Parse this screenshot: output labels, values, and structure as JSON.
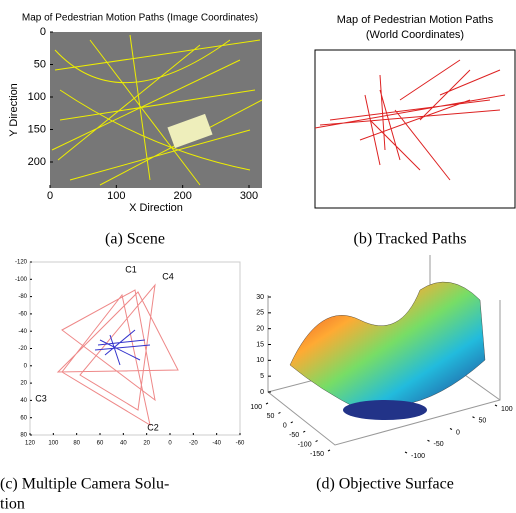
{
  "figures": [
    {
      "caption": "(a) Scene",
      "title": "Map of Pedestrian Motion Paths (Image Coordinates)",
      "xlabel": "X Direction",
      "ylabel": "Y Direction",
      "xticks": [
        0,
        100,
        200,
        300
      ],
      "yticks": [
        0,
        50,
        100,
        150,
        200
      ]
    },
    {
      "caption": "(b) Tracked Paths",
      "title": [
        "Map of Pedestrian Motion Paths",
        "(World Coordinates)"
      ]
    },
    {
      "caption": [
        "(c) Multiple Camera Solu-",
        "tion"
      ],
      "cameras": [
        "C1",
        "C2",
        "C3",
        "C4"
      ],
      "xticks": [
        120,
        100,
        80,
        60,
        40,
        20,
        0,
        -20,
        -40,
        -60
      ],
      "yticks": [
        -120,
        -100,
        -80,
        -60,
        -40,
        -20,
        0,
        20,
        40,
        60,
        80
      ]
    },
    {
      "caption": "(d) Objective Surface",
      "zticks": [
        0,
        5,
        10,
        15,
        20,
        25,
        30
      ],
      "xticks": [
        100,
        50,
        0,
        -50,
        -100,
        -150
      ],
      "yticks": [
        -100,
        -50,
        0,
        50,
        100
      ]
    }
  ]
}
